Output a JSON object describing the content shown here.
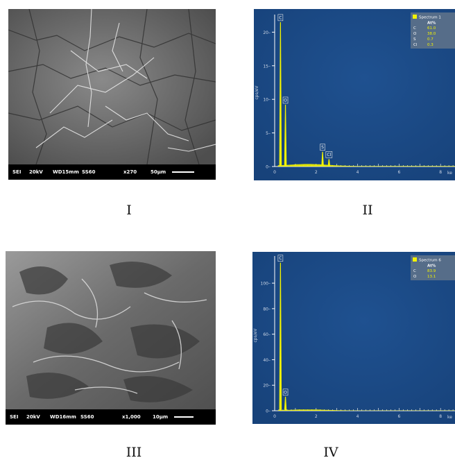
{
  "panels": [
    {
      "id": "I",
      "caption": "I",
      "sem_bar": {
        "mode": "SEI",
        "voltage": "20kV",
        "wd": "WD15mm",
        "ss": "SS60",
        "mag": "x270",
        "scale": "50µm"
      }
    },
    {
      "id": "III",
      "caption": "III",
      "sem_bar": {
        "mode": "SEI",
        "voltage": "20kV",
        "wd": "WD16mm",
        "ss": "SS60",
        "mag": "x1,000",
        "scale": "10µm"
      }
    },
    {
      "id": "II",
      "caption": "II"
    },
    {
      "id": "IV",
      "caption": "IV"
    }
  ],
  "chart_data": [
    {
      "type": "line",
      "panel": "II",
      "ylabel": "cps/eV",
      "xlabel": "ke",
      "xlim": [
        0,
        9.7
      ],
      "ylim": [
        0,
        22
      ],
      "x_ticks": [
        0,
        2,
        4,
        6,
        8
      ],
      "y_ticks": [
        0,
        5,
        10,
        15,
        20
      ],
      "peaks": [
        {
          "label": "C",
          "x": 0.28,
          "y": 21.5
        },
        {
          "label": "O",
          "x": 0.52,
          "y": 9.2
        },
        {
          "label": "S",
          "x": 2.31,
          "y": 2.2
        },
        {
          "label": "Cl",
          "x": 2.62,
          "y": 1.1
        }
      ],
      "background_level": 0.3,
      "legend": {
        "title": "Spectrum 1",
        "header": "At%",
        "rows": [
          {
            "element": "C",
            "value": "61.0"
          },
          {
            "element": "O",
            "value": "38.0"
          },
          {
            "element": "S",
            "value": "0.7"
          },
          {
            "element": "Cl",
            "value": "0.3"
          }
        ]
      },
      "colors": {
        "background": "#17427a",
        "trace": "#f2f200",
        "axis": "#ffffff",
        "legend_bg": "#5d718a",
        "value": "#f2f200"
      }
    },
    {
      "type": "line",
      "panel": "IV",
      "ylabel": "cps/eV",
      "xlabel": "ke",
      "xlim": [
        0,
        9.7
      ],
      "ylim": [
        0,
        118
      ],
      "x_ticks": [
        0,
        2,
        4,
        6,
        8
      ],
      "y_ticks": [
        0,
        20,
        40,
        60,
        80,
        100
      ],
      "peaks": [
        {
          "label": "C",
          "x": 0.28,
          "y": 116
        },
        {
          "label": "O",
          "x": 0.52,
          "y": 11
        }
      ],
      "background_level": 0.8,
      "legend": {
        "title": "Spectrum 6",
        "header": "At%",
        "rows": [
          {
            "element": "C",
            "value": "83.9"
          },
          {
            "element": "O",
            "value": "13.1"
          }
        ]
      },
      "colors": {
        "background": "#17427a",
        "trace": "#f2f200",
        "axis": "#ffffff",
        "legend_bg": "#5d718a",
        "value": "#f2f200"
      }
    }
  ]
}
